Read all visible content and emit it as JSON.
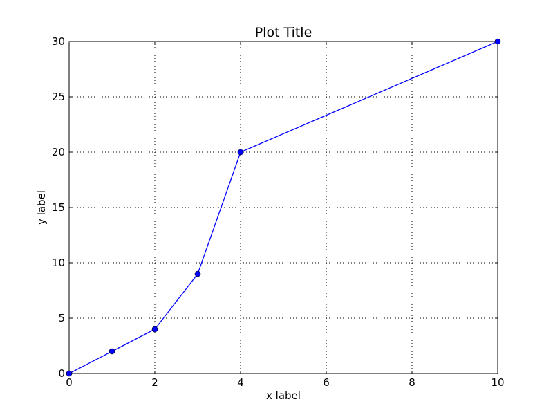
{
  "chart_data": {
    "type": "line",
    "title": "Plot Title",
    "xlabel": "x label",
    "ylabel": "y label",
    "xlim": [
      0,
      10
    ],
    "ylim": [
      0,
      30
    ],
    "xticks": [
      0,
      2,
      4,
      6,
      8,
      10
    ],
    "yticks": [
      0,
      5,
      10,
      15,
      20,
      25,
      30
    ],
    "grid": true,
    "series": [
      {
        "x": [
          0,
          1,
          2,
          3,
          4,
          10
        ],
        "y": [
          0,
          2,
          4,
          9,
          20,
          30
        ],
        "color": "#0000ff",
        "marker": "circle"
      }
    ]
  }
}
